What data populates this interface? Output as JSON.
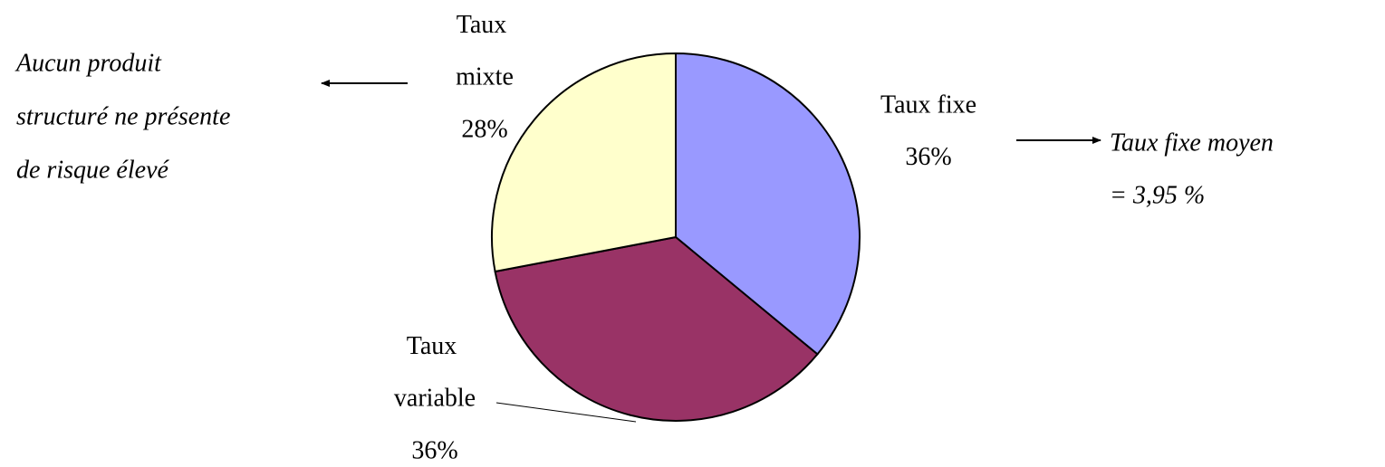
{
  "chart_data": {
    "type": "pie",
    "categories": [
      "Taux fixe",
      "Taux variable",
      "Taux mixte"
    ],
    "values": [
      36,
      36,
      28
    ],
    "value_labels": [
      "36%",
      "36%",
      "28%"
    ],
    "colors": [
      "#9999ff",
      "#993366",
      "#ffffcc"
    ],
    "annotations": [
      {
        "lines": [
          "Aucun produit",
          "structuré ne présente",
          "de risque élevé"
        ]
      },
      {
        "lines": [
          "Taux fixe moyen",
          "= 3,95 %"
        ]
      }
    ]
  }
}
